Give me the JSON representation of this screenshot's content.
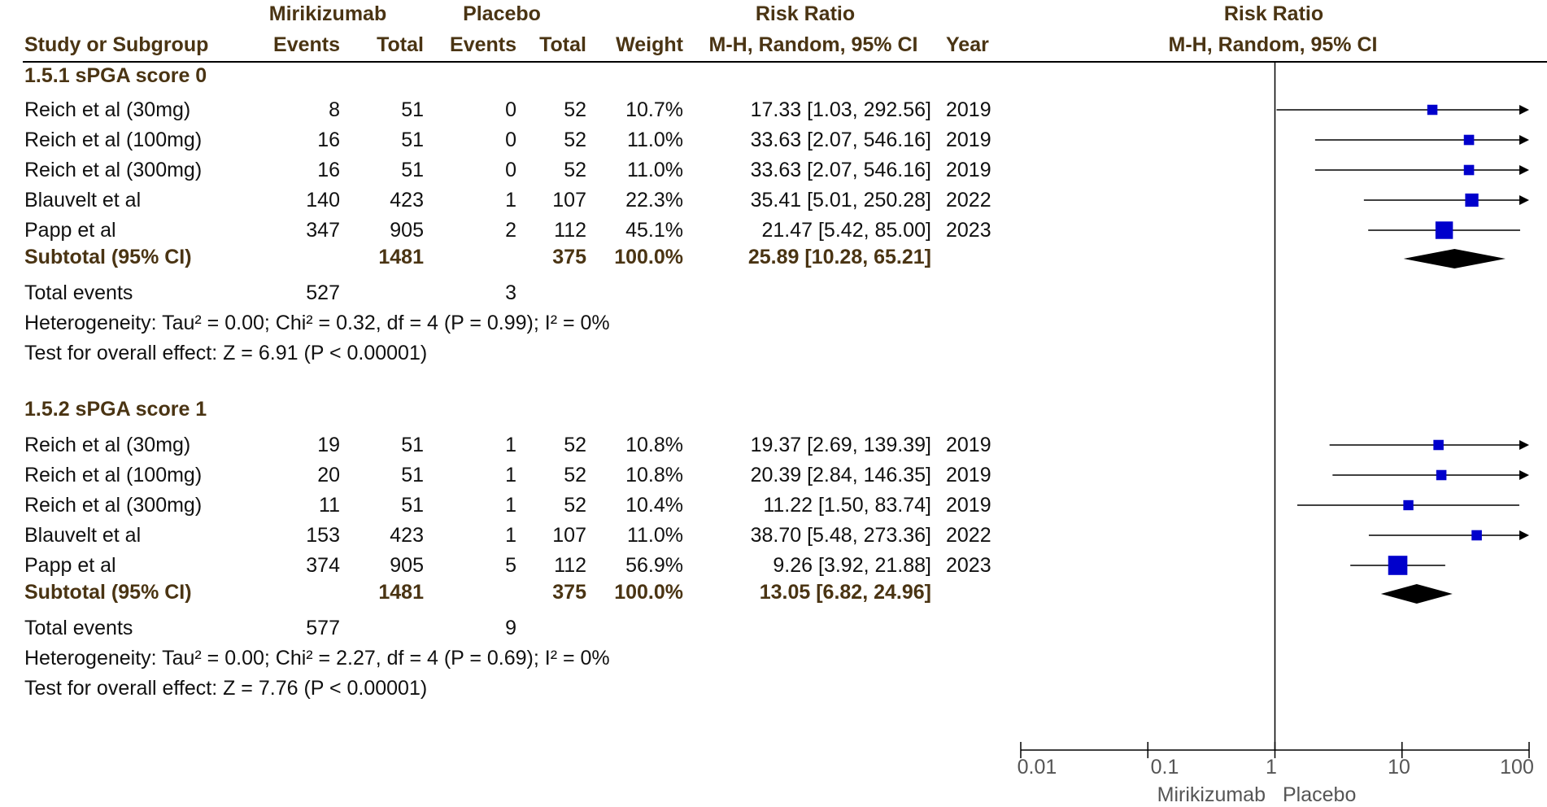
{
  "header": {
    "group1_label": "Mirikizumab",
    "group2_label": "Placebo",
    "rr_label": "Risk Ratio",
    "plot_title": "Risk Ratio",
    "col_study": "Study or Subgroup",
    "col_events1": "Events",
    "col_total1": "Total",
    "col_events2": "Events",
    "col_total2": "Total",
    "col_weight": "Weight",
    "col_method": "M-H, Random, 95% CI",
    "col_year": "Year",
    "plot_method": "M-H, Random, 95% CI"
  },
  "subgroups": [
    {
      "title": "1.5.1 sPGA score 0",
      "studies": [
        {
          "name": "Reich et al (30mg)",
          "e1": "8",
          "t1": "51",
          "e2": "0",
          "t2": "52",
          "weight": "10.7%",
          "ci": "17.33 [1.03, 292.56]",
          "year": "2019"
        },
        {
          "name": "Reich et al (100mg)",
          "e1": "16",
          "t1": "51",
          "e2": "0",
          "t2": "52",
          "weight": "11.0%",
          "ci": "33.63 [2.07, 546.16]",
          "year": "2019"
        },
        {
          "name": "Reich et al (300mg)",
          "e1": "16",
          "t1": "51",
          "e2": "0",
          "t2": "52",
          "weight": "11.0%",
          "ci": "33.63 [2.07, 546.16]",
          "year": "2019"
        },
        {
          "name": "Blauvelt et al",
          "e1": "140",
          "t1": "423",
          "e2": "1",
          "t2": "107",
          "weight": "22.3%",
          "ci": "35.41 [5.01, 250.28]",
          "year": "2022"
        },
        {
          "name": "Papp et al",
          "e1": "347",
          "t1": "905",
          "e2": "2",
          "t2": "112",
          "weight": "45.1%",
          "ci": "21.47 [5.42, 85.00]",
          "year": "2023"
        }
      ],
      "subtotal": {
        "label": "Subtotal (95% CI)",
        "t1": "1481",
        "t2": "375",
        "weight": "100.0%",
        "ci": "25.89 [10.28, 65.21]"
      },
      "total_events": {
        "label": "Total events",
        "e1": "527",
        "e2": "3"
      },
      "heterogeneity": "Heterogeneity: Tau² = 0.00; Chi² = 0.32, df = 4 (P = 0.99); I² = 0%",
      "overall": "Test for overall effect: Z = 6.91 (P < 0.00001)"
    },
    {
      "title": "1.5.2 sPGA score 1",
      "studies": [
        {
          "name": "Reich et al (30mg)",
          "e1": "19",
          "t1": "51",
          "e2": "1",
          "t2": "52",
          "weight": "10.8%",
          "ci": "19.37 [2.69, 139.39]",
          "year": "2019"
        },
        {
          "name": "Reich et al (100mg)",
          "e1": "20",
          "t1": "51",
          "e2": "1",
          "t2": "52",
          "weight": "10.8%",
          "ci": "20.39 [2.84, 146.35]",
          "year": "2019"
        },
        {
          "name": "Reich et al (300mg)",
          "e1": "11",
          "t1": "51",
          "e2": "1",
          "t2": "52",
          "weight": "10.4%",
          "ci": "11.22 [1.50, 83.74]",
          "year": "2019"
        },
        {
          "name": "Blauvelt et al",
          "e1": "153",
          "t1": "423",
          "e2": "1",
          "t2": "107",
          "weight": "11.0%",
          "ci": "38.70 [5.48, 273.36]",
          "year": "2022"
        },
        {
          "name": "Papp et al",
          "e1": "374",
          "t1": "905",
          "e2": "5",
          "t2": "112",
          "weight": "56.9%",
          "ci": "9.26 [3.92, 21.88]",
          "year": "2023"
        }
      ],
      "subtotal": {
        "label": "Subtotal (95% CI)",
        "t1": "1481",
        "t2": "375",
        "weight": "100.0%",
        "ci": "13.05 [6.82, 24.96]"
      },
      "total_events": {
        "label": "Total events",
        "e1": "577",
        "e2": "9"
      },
      "heterogeneity": "Heterogeneity: Tau² = 0.00; Chi² = 2.27, df = 4 (P = 0.69); I² = 0%",
      "overall": "Test for overall effect: Z = 7.76 (P < 0.00001)"
    }
  ],
  "axis": {
    "ticks": [
      "0.01",
      "0.1",
      "1",
      "10",
      "100"
    ],
    "favours_left": "Mirikizumab",
    "favours_right": "Placebo"
  },
  "colors": {
    "marker": "#0000cc",
    "diamond": "#000000",
    "header_text": "#4a3413"
  },
  "chart_data": {
    "type": "forest",
    "x_scale": "log",
    "xlim": [
      0.01,
      100
    ],
    "null_line": 1,
    "subgroups": [
      {
        "name": "1.5.1 sPGA score 0",
        "studies": [
          {
            "name": "Reich et al (30mg)",
            "rr": 17.33,
            "lo": 1.03,
            "hi": 292.56,
            "weight": 10.7
          },
          {
            "name": "Reich et al (100mg)",
            "rr": 33.63,
            "lo": 2.07,
            "hi": 546.16,
            "weight": 11.0
          },
          {
            "name": "Reich et al (300mg)",
            "rr": 33.63,
            "lo": 2.07,
            "hi": 546.16,
            "weight": 11.0
          },
          {
            "name": "Blauvelt et al",
            "rr": 35.41,
            "lo": 5.01,
            "hi": 250.28,
            "weight": 22.3
          },
          {
            "name": "Papp et al",
            "rr": 21.47,
            "lo": 5.42,
            "hi": 85.0,
            "weight": 45.1
          }
        ],
        "pooled": {
          "rr": 25.89,
          "lo": 10.28,
          "hi": 65.21
        }
      },
      {
        "name": "1.5.2 sPGA score 1",
        "studies": [
          {
            "name": "Reich et al (30mg)",
            "rr": 19.37,
            "lo": 2.69,
            "hi": 139.39,
            "weight": 10.8
          },
          {
            "name": "Reich et al (100mg)",
            "rr": 20.39,
            "lo": 2.84,
            "hi": 146.35,
            "weight": 10.8
          },
          {
            "name": "Reich et al (300mg)",
            "rr": 11.22,
            "lo": 1.5,
            "hi": 83.74,
            "weight": 10.4
          },
          {
            "name": "Blauvelt et al",
            "rr": 38.7,
            "lo": 5.48,
            "hi": 273.36,
            "weight": 11.0
          },
          {
            "name": "Papp et al",
            "rr": 9.26,
            "lo": 3.92,
            "hi": 21.88,
            "weight": 56.9
          }
        ],
        "pooled": {
          "rr": 13.05,
          "lo": 6.82,
          "hi": 24.96
        }
      }
    ]
  }
}
